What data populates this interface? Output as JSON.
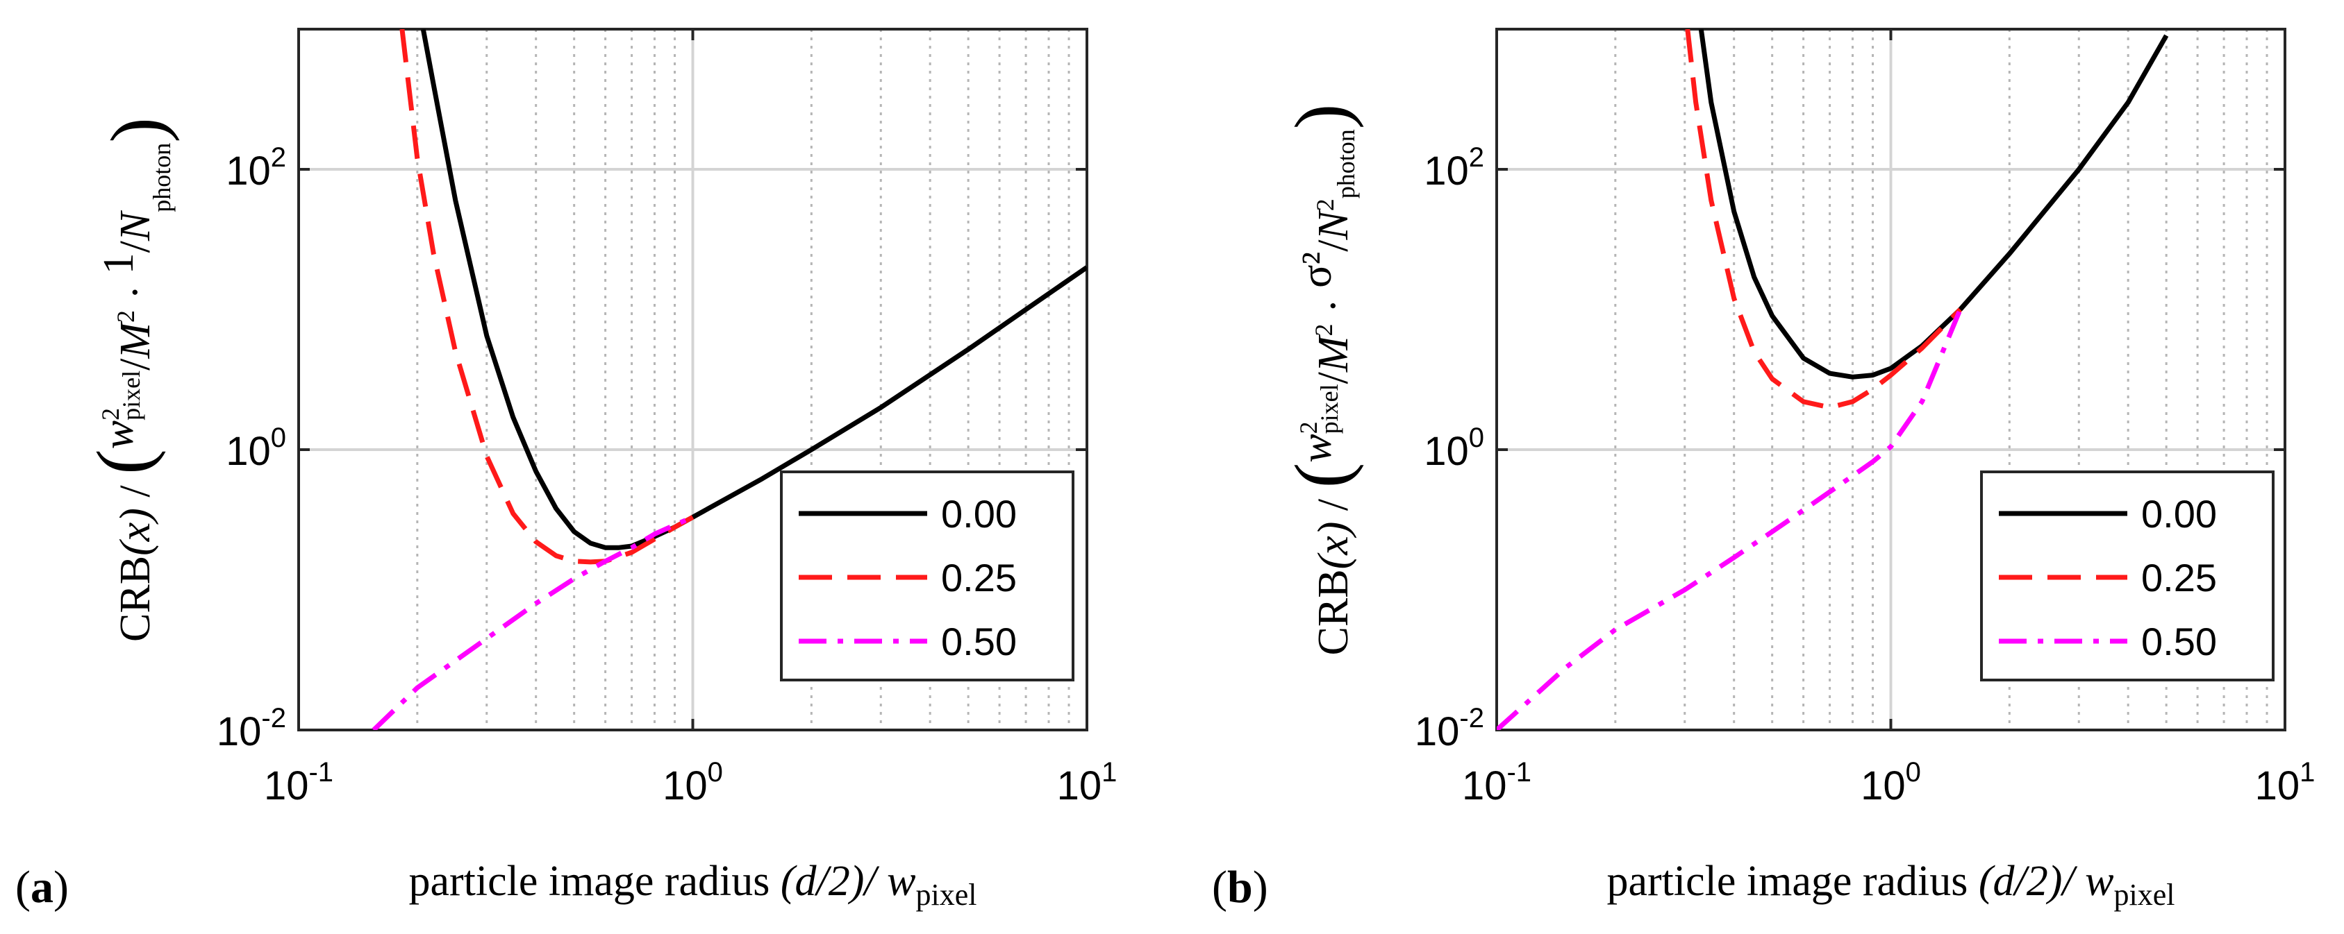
{
  "chart_data": [
    {
      "type": "line",
      "panel": "(a)",
      "panel_letter": "a",
      "xscale": "log",
      "yscale": "log",
      "xlim": [
        0.1,
        10
      ],
      "ylim": [
        0.01,
        1000
      ],
      "xticks": [
        {
          "base": "10",
          "exp": "-1",
          "value": 0.1
        },
        {
          "base": "10",
          "exp": "0",
          "value": 1
        },
        {
          "base": "10",
          "exp": "1",
          "value": 10
        }
      ],
      "yticks": [
        {
          "base": "10",
          "exp": "-2",
          "value": 0.01
        },
        {
          "base": "10",
          "exp": "0",
          "value": 1
        },
        {
          "base": "10",
          "exp": "2",
          "value": 100
        }
      ],
      "xlabel": {
        "main": "particle image radius ",
        "expr": "(d/2)/ ",
        "sym": "w",
        "sub": "pixel"
      },
      "ylabel": {
        "crb": "CRB",
        "crb_arg": "(x)",
        "slash": " / ",
        "num_sym": "w",
        "num_sup": "2",
        "num_sub": "pixel",
        "den_sym": "M",
        "den_sup": "2",
        "dot": "·",
        "right_num": "1",
        "right_den_sym": "N",
        "right_den_sup": "",
        "right_den_sub": "photon"
      },
      "grid": true,
      "legend_position": "lower-right",
      "series": [
        {
          "name": "0.00",
          "color": "#000000",
          "dash": "solid",
          "x": [
            0.207,
            0.22,
            0.25,
            0.3,
            0.35,
            0.4,
            0.45,
            0.5,
            0.55,
            0.6,
            0.65,
            0.7,
            0.8,
            0.9,
            1.0,
            1.5,
            2.0,
            3.0,
            5.0,
            7.0,
            10.0
          ],
          "y": [
            1000,
            400,
            60,
            6.5,
            1.7,
            0.7,
            0.38,
            0.26,
            0.215,
            0.2,
            0.2,
            0.205,
            0.24,
            0.28,
            0.33,
            0.62,
            1.0,
            2.0,
            5.2,
            10.0,
            20.0
          ]
        },
        {
          "name": "0.25",
          "color": "#ff1a1a",
          "dash": "long",
          "x": [
            0.183,
            0.2,
            0.22,
            0.25,
            0.3,
            0.35,
            0.4,
            0.45,
            0.5,
            0.55,
            0.6,
            0.7,
            0.8,
            0.9,
            1.0
          ],
          "y": [
            1000,
            120,
            25,
            5.0,
            0.9,
            0.35,
            0.22,
            0.175,
            0.16,
            0.158,
            0.16,
            0.185,
            0.23,
            0.28,
            0.33
          ]
        },
        {
          "name": "0.50",
          "color": "#ff00ff",
          "dash": "dashdot",
          "x": [
            0.155,
            0.2,
            0.3,
            0.4,
            0.5,
            0.6,
            0.7,
            0.8,
            0.9,
            1.0
          ],
          "y": [
            0.01,
            0.02,
            0.045,
            0.08,
            0.12,
            0.16,
            0.2,
            0.25,
            0.29,
            0.33
          ]
        }
      ]
    },
    {
      "type": "line",
      "panel": "(b)",
      "panel_letter": "b",
      "xscale": "log",
      "yscale": "log",
      "xlim": [
        0.1,
        10
      ],
      "ylim": [
        0.01,
        1000
      ],
      "xticks": [
        {
          "base": "10",
          "exp": "-1",
          "value": 0.1
        },
        {
          "base": "10",
          "exp": "0",
          "value": 1
        },
        {
          "base": "10",
          "exp": "1",
          "value": 10
        }
      ],
      "yticks": [
        {
          "base": "10",
          "exp": "-2",
          "value": 0.01
        },
        {
          "base": "10",
          "exp": "0",
          "value": 1
        },
        {
          "base": "10",
          "exp": "2",
          "value": 100
        }
      ],
      "xlabel": {
        "main": "particle image radius ",
        "expr": "(d/2)/ ",
        "sym": "w",
        "sub": "pixel"
      },
      "ylabel": {
        "crb": "CRB",
        "crb_arg": "(x)",
        "slash": " / ",
        "num_sym": "w",
        "num_sup": "2",
        "num_sub": "pixel",
        "den_sym": "M",
        "den_sup": "2",
        "dot": "·",
        "right_num": "σ²",
        "right_den_sym": "N",
        "right_den_sup": "2",
        "right_den_sub": "photon"
      },
      "grid": true,
      "legend_position": "lower-right",
      "series": [
        {
          "name": "0.00",
          "color": "#000000",
          "dash": "solid",
          "x": [
            0.33,
            0.35,
            0.4,
            0.45,
            0.5,
            0.6,
            0.7,
            0.8,
            0.9,
            1.0,
            1.2,
            1.5,
            2.0,
            3.0,
            4.0,
            5.0
          ],
          "y": [
            1000,
            300,
            50,
            17,
            9,
            4.5,
            3.5,
            3.3,
            3.4,
            3.8,
            5.5,
            10.0,
            25.0,
            100,
            300,
            900
          ]
        },
        {
          "name": "0.25",
          "color": "#ff1a1a",
          "dash": "long",
          "x": [
            0.305,
            0.32,
            0.35,
            0.4,
            0.45,
            0.5,
            0.6,
            0.7,
            0.8,
            0.9,
            1.0,
            1.2,
            1.5
          ],
          "y": [
            1000,
            300,
            60,
            12,
            5.0,
            3.2,
            2.2,
            2.0,
            2.2,
            2.7,
            3.4,
            5.3,
            10.0
          ]
        },
        {
          "name": "0.50",
          "color": "#ff00ff",
          "dash": "dashdot",
          "x": [
            0.1,
            0.15,
            0.2,
            0.3,
            0.4,
            0.5,
            0.6,
            0.7,
            0.8,
            0.9,
            1.0,
            1.2,
            1.5
          ],
          "y": [
            0.01,
            0.028,
            0.052,
            0.1,
            0.17,
            0.26,
            0.37,
            0.5,
            0.65,
            0.82,
            1.05,
            2.2,
            10.0
          ]
        }
      ]
    }
  ]
}
